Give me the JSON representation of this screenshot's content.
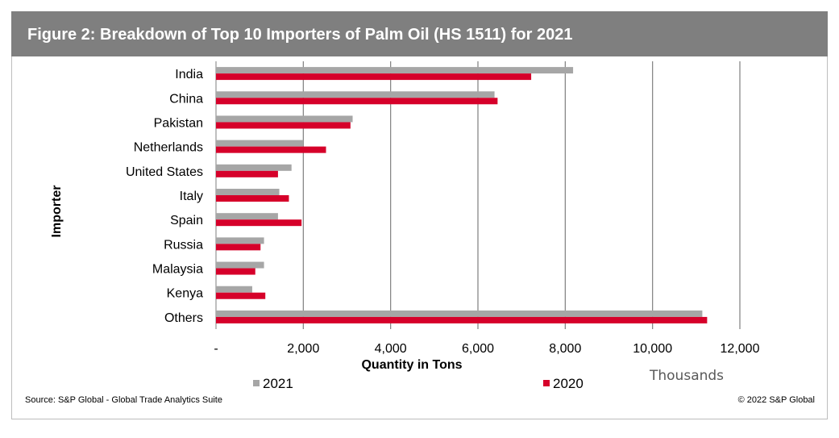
{
  "header": {
    "title": "Figure 2: Breakdown of Top 10 Importers of Palm Oil (HS 1511) for 2021"
  },
  "footer": {
    "source": "Source: S&P Global - Global Trade Analytics Suite",
    "copyright": "© 2022 S&P Global"
  },
  "colors": {
    "title_bar": "#7f7f7f",
    "series_2021": "#a6a6a6",
    "series_2020": "#d6002a",
    "gridline": "#7f7f7f"
  },
  "chart_data": {
    "type": "bar",
    "orientation": "horizontal",
    "categories": [
      "India",
      "China",
      "Pakistan",
      "Netherlands",
      "United States",
      "Italy",
      "Spain",
      "Russia",
      "Malaysia",
      "Kenya",
      "Others"
    ],
    "series": [
      {
        "name": "2021",
        "values": [
          8180,
          6380,
          3130,
          2000,
          1730,
          1450,
          1420,
          1100,
          1100,
          830,
          11140
        ]
      },
      {
        "name": "2020",
        "values": [
          7220,
          6450,
          3080,
          2520,
          1420,
          1670,
          1960,
          1020,
          900,
          1130,
          11250
        ]
      }
    ],
    "xlabel": "Quantity in Tons",
    "ylabel": "Importer",
    "units": "Thousands",
    "xlim": [
      0,
      12000
    ],
    "xticks": [
      "-",
      "2,000",
      "4,000",
      "6,000",
      "8,000",
      "10,000",
      "12,000"
    ],
    "grid": "vertical",
    "legend_position": "bottom"
  }
}
